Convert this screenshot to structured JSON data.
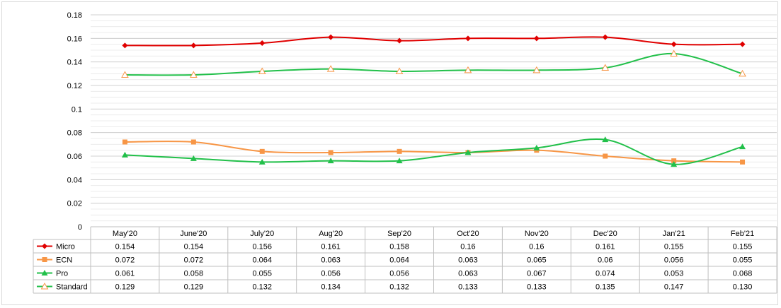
{
  "chart_data": {
    "type": "line",
    "title": "",
    "xlabel": "",
    "ylabel": "",
    "categories": [
      "May'20",
      "June'20",
      "July'20",
      "Aug'20",
      "Sep'20",
      "Oct'20",
      "Nov'20",
      "Dec'20",
      "Jan'21",
      "Feb'21"
    ],
    "ylim": [
      0,
      0.18
    ],
    "y_ticks": [
      "0",
      "0.02",
      "0.04",
      "0.06",
      "0.08",
      "0.1",
      "0.12",
      "0.14",
      "0.16",
      "0.18"
    ],
    "grid": true,
    "legend": "data table below chart",
    "series": [
      {
        "name": "Micro",
        "color": "#e00000",
        "marker": "diamond",
        "values": [
          0.154,
          0.154,
          0.156,
          0.161,
          0.158,
          0.16,
          0.16,
          0.161,
          0.155,
          0.155
        ],
        "labels": [
          "0.154",
          "0.154",
          "0.156",
          "0.161",
          "0.158",
          "0.16",
          "0.16",
          "0.161",
          "0.155",
          "0.155"
        ]
      },
      {
        "name": "ECN",
        "color": "#f79646",
        "marker": "square",
        "values": [
          0.072,
          0.072,
          0.064,
          0.063,
          0.064,
          0.063,
          0.065,
          0.06,
          0.056,
          0.055
        ],
        "labels": [
          "0.072",
          "0.072",
          "0.064",
          "0.063",
          "0.064",
          "0.063",
          "0.065",
          "0.06",
          "0.056",
          "0.055"
        ]
      },
      {
        "name": "Pro",
        "color": "#22c04a",
        "marker": "triangle",
        "values": [
          0.061,
          0.058,
          0.055,
          0.056,
          0.056,
          0.063,
          0.067,
          0.074,
          0.053,
          0.068
        ],
        "labels": [
          "0.061",
          "0.058",
          "0.055",
          "0.056",
          "0.056",
          "0.063",
          "0.067",
          "0.074",
          "0.053",
          "0.068"
        ]
      },
      {
        "name": "Standard",
        "color": "#22c04a",
        "marker": "triangle-open",
        "marker_color": "#f79646",
        "values": [
          0.129,
          0.129,
          0.132,
          0.134,
          0.132,
          0.133,
          0.133,
          0.135,
          0.147,
          0.13
        ],
        "labels": [
          "0.129",
          "0.129",
          "0.132",
          "0.134",
          "0.132",
          "0.133",
          "0.133",
          "0.135",
          "0.147",
          "0.130"
        ]
      }
    ]
  }
}
